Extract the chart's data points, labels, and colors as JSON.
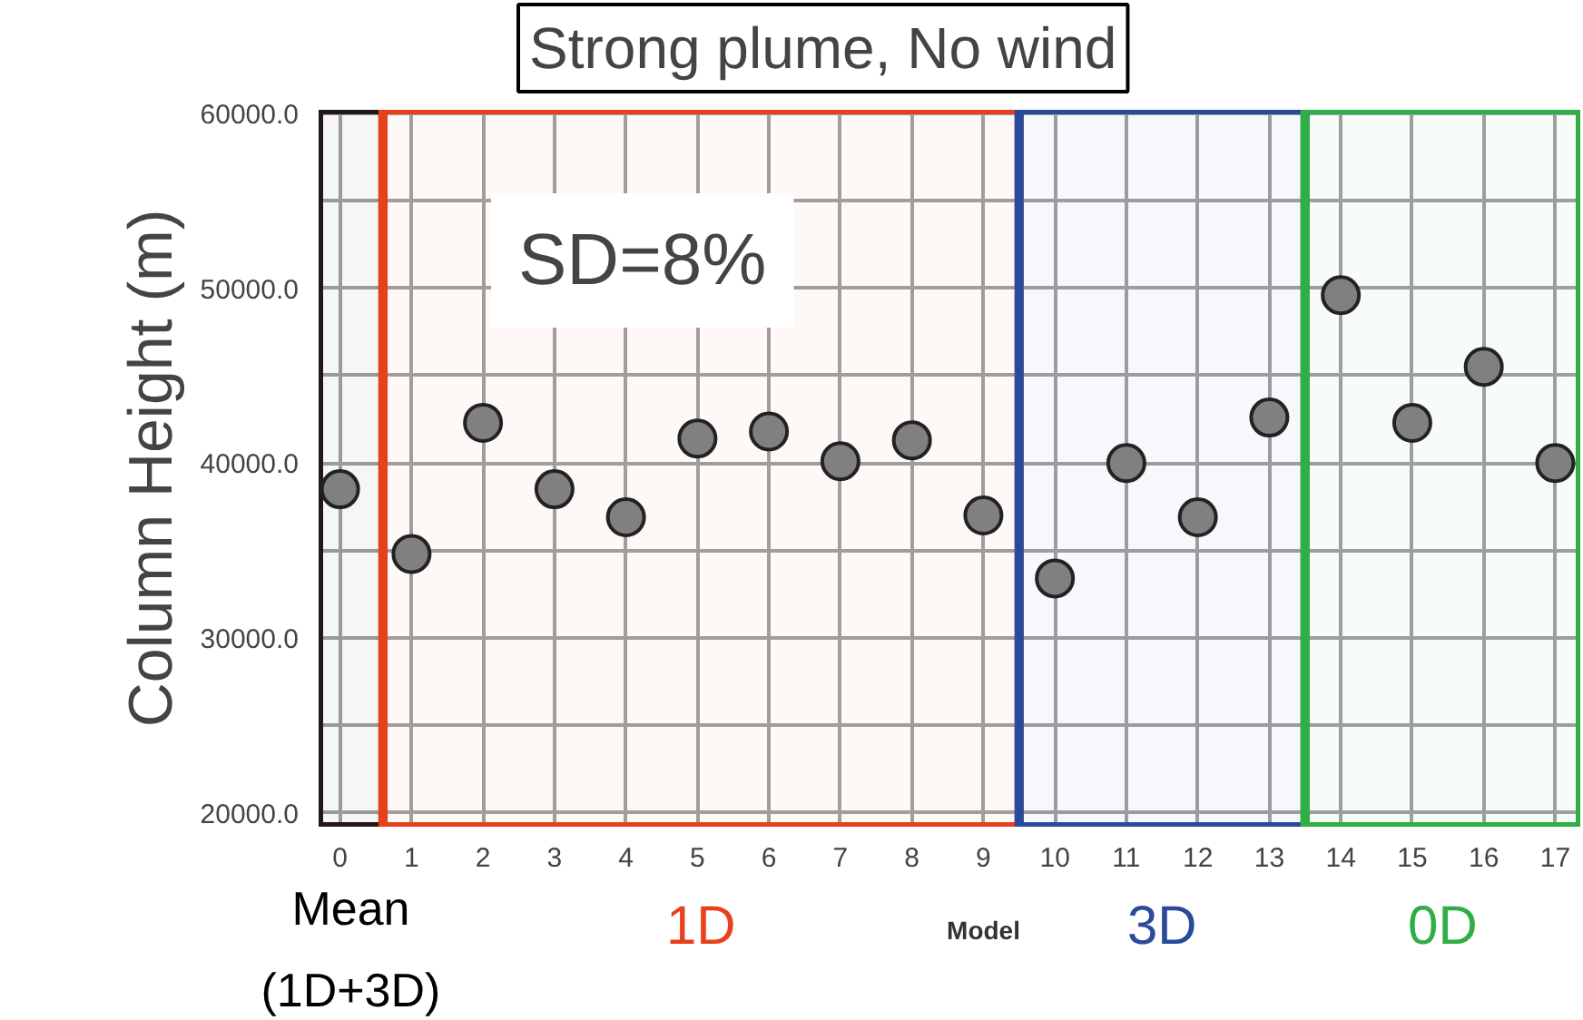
{
  "chart_data": {
    "type": "scatter",
    "title": "Strong plume, No wind",
    "xlabel": "Model",
    "ylabel": "Column Height (m)",
    "x": [
      0,
      1,
      2,
      3,
      4,
      5,
      6,
      7,
      8,
      9,
      10,
      11,
      12,
      13,
      14,
      15,
      16,
      17
    ],
    "series": [
      {
        "color": "#808080",
        "values": [
          38500,
          34800,
          42300,
          38500,
          36900,
          41400,
          41800,
          40100,
          41300,
          37000,
          33400,
          40000,
          36900,
          42600,
          49600,
          42300,
          45500,
          40000
        ]
      }
    ],
    "xlim": [
      -0.3,
      17.35
    ],
    "ylim": [
      19200,
      60200
    ],
    "xticks": [
      0,
      1,
      2,
      3,
      4,
      5,
      6,
      7,
      8,
      9,
      10,
      11,
      12,
      13,
      14,
      15,
      16,
      17
    ],
    "yticks": [
      {
        "value": 20000,
        "label": "20000.0"
      },
      {
        "value": 25000,
        "label": null
      },
      {
        "value": 30000,
        "label": "30000.0"
      },
      {
        "value": 35000,
        "label": null
      },
      {
        "value": 40000,
        "label": "40000.0"
      },
      {
        "value": 45000,
        "label": null
      },
      {
        "value": 50000,
        "label": "50000.0"
      },
      {
        "value": 55000,
        "label": null
      },
      {
        "value": 60000,
        "label": "60000.0"
      }
    ],
    "bands": [
      {
        "axis": "x",
        "from": -0.3,
        "to": 0.6,
        "label": "Mean\n(1D+3D)",
        "color": "#231815"
      },
      {
        "axis": "x",
        "from": 0.6,
        "to": 9.5,
        "label": "1D",
        "color": "#e8401c"
      },
      {
        "axis": "x",
        "from": 9.5,
        "to": 13.5,
        "label": "3D",
        "color": "#2a4a9c"
      },
      {
        "axis": "x",
        "from": 13.5,
        "to": 17.35,
        "label": "0D",
        "color": "#2fae45"
      }
    ],
    "annotations": [
      "SD=8%"
    ],
    "grid": true,
    "marker": "circle"
  }
}
